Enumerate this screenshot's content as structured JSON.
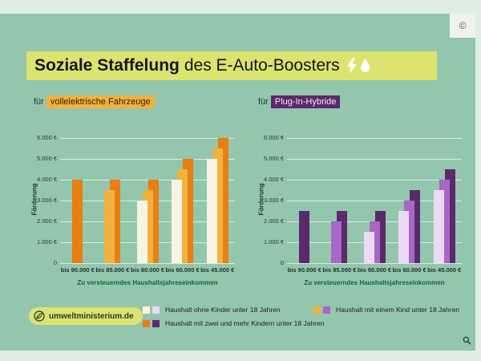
{
  "header": {
    "title_bold": "Soziale Staffelung",
    "title_rest": "des E-Auto-Boosters"
  },
  "window": {
    "copyright_symbol": "©"
  },
  "sections": [
    {
      "prefix": "für",
      "highlight": "vollelektrische Fahrzeuge"
    },
    {
      "prefix": "für",
      "highlight": "Plug-In-Hybride"
    }
  ],
  "chart_data": [
    {
      "type": "bar",
      "title": "für vollelektrische Fahrzeuge",
      "categories": [
        "bis 90.000 €",
        "bis 85.000 €",
        "bis 80.000 €",
        "bis 60.000 €",
        "bis 45.000 €"
      ],
      "series": [
        {
          "name": "Haushalt ohne Kinder unter 18 Jahren",
          "color": "#f8f4e3",
          "values": [
            null,
            null,
            3000,
            4000,
            5000
          ]
        },
        {
          "name": "Haushalt mit einem Kind unter 18 Jahren",
          "color": "#f1b13e",
          "values": [
            null,
            3500,
            3500,
            4500,
            5500
          ]
        },
        {
          "name": "Haushalt mit zwei und mehr Kindern unter 18 Jahren",
          "color": "#e97e12",
          "values": [
            4000,
            4000,
            4000,
            5000,
            6000
          ]
        }
      ],
      "xlabel": "Zu versteuerndes Haushaltsjahreseinkommen",
      "ylabel": "Förderung",
      "ylim": [
        0,
        6000
      ],
      "yticks": [
        "0",
        "1.000 €",
        "2.000 €",
        "3.000 €",
        "4.000 €",
        "5.000 €",
        "6.000 €"
      ],
      "grid": true,
      "legend_position": "bottom"
    },
    {
      "type": "bar",
      "title": "für Plug-In-Hybride",
      "categories": [
        "bis 90.000 €",
        "bis 85.000 €",
        "bis 80.000 €",
        "bis 60.000 €",
        "bis 45.000 €"
      ],
      "series": [
        {
          "name": "Haushalt ohne Kinder unter 18 Jahren",
          "color": "#eadaf4",
          "values": [
            null,
            null,
            1500,
            2500,
            3500
          ]
        },
        {
          "name": "Haushalt mit einem Kind unter 18 Jahren",
          "color": "#a867c6",
          "values": [
            null,
            2000,
            2000,
            3000,
            4000
          ]
        },
        {
          "name": "Haushalt mit zwei und mehr Kindern unter 18 Jahren",
          "color": "#5a2a6b",
          "values": [
            2500,
            2500,
            2500,
            3500,
            4500
          ]
        }
      ],
      "xlabel": "Zu versteuerndes Haushaltsjahreseinkommen",
      "ylabel": "Förderung",
      "ylim": [
        0,
        6000
      ],
      "yticks": [
        "0",
        "1.000 €",
        "2.000 €",
        "3.000 €",
        "4.000 €",
        "5.000 €",
        "6.000 €"
      ],
      "grid": true,
      "legend_position": "bottom"
    }
  ],
  "legend": {
    "items": [
      {
        "label": "Haushalt ohne Kinder unter 18 Jahren",
        "colors": [
          "#f8f4e3",
          "#eadaf4"
        ]
      },
      {
        "label": "Haushalt mit einem Kind unter 18 Jahren",
        "colors": [
          "#f1b13e",
          "#a867c6"
        ]
      },
      {
        "label": "Haushalt mit zwei und mehr Kindern unter 18 Jahren",
        "colors": [
          "#e97e12",
          "#5a2a6b"
        ]
      }
    ]
  },
  "footer": {
    "site": "umweltministerium.de"
  },
  "icons": {
    "title": [
      "lightning-icon",
      "droplet-icon"
    ],
    "footer_logo": "leaf-icon",
    "viewer": [
      "copyright-icon",
      "magnifier-icon"
    ]
  },
  "colors": {
    "background": "#e0ede5",
    "panel": "#93c6ad",
    "accent_band": "#dce36f",
    "orange_dark": "#e97e12",
    "orange_light": "#f1b13e",
    "cream": "#f8f4e3",
    "purple_dark": "#5a2a6b",
    "purple_medium": "#a867c6",
    "lavender": "#eadaf4",
    "axis_teal": "#14604c"
  }
}
